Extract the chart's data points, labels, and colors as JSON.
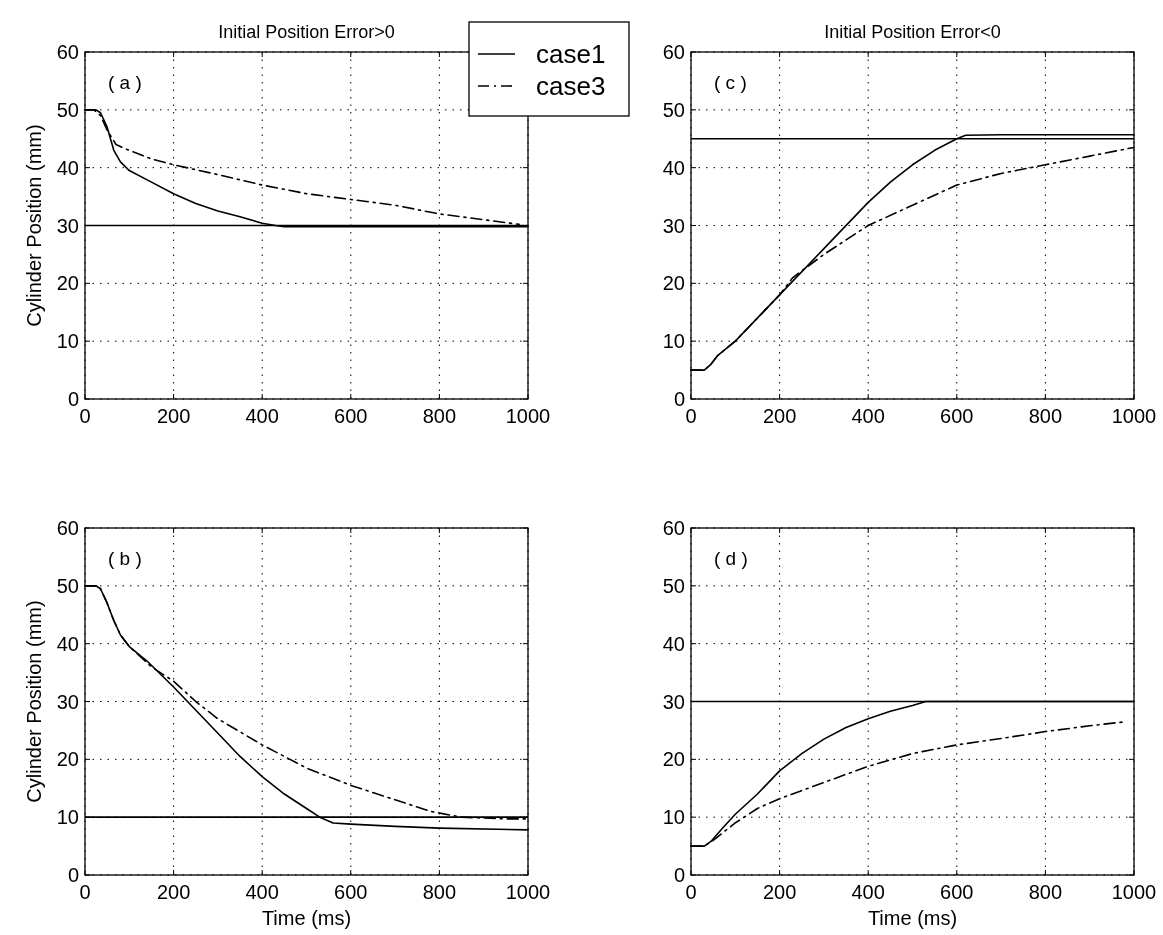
{
  "chart_data": [
    {
      "type": "line",
      "title": "Initial Position Error>0",
      "ylabel": "Cylinder Position (mm)",
      "annotations": [
        "( a )"
      ],
      "xlim": [
        0,
        1000
      ],
      "xticks": [
        0,
        200,
        400,
        600,
        800,
        1000
      ],
      "ylim": [
        0,
        60
      ],
      "yticks": [
        0,
        10,
        20,
        30,
        40,
        50,
        60
      ],
      "grid": true,
      "legend": "top right",
      "ref_lines": [
        {
          "axis": "y",
          "value": 30,
          "color": "#000000"
        }
      ],
      "series": [
        {
          "name": "case1",
          "color": "#000000",
          "line_style": "solid",
          "x": [
            0,
            25,
            35,
            50,
            65,
            80,
            100,
            150,
            200,
            250,
            300,
            350,
            400,
            430,
            450,
            600,
            800,
            1000
          ],
          "values": [
            50,
            50,
            49.5,
            47,
            43,
            41,
            39.5,
            37.5,
            35.5,
            33.8,
            32.5,
            31.5,
            30.4,
            30,
            29.8,
            29.8,
            29.8,
            29.8
          ]
        },
        {
          "name": "case3",
          "color": "#000000",
          "line_style": "dashed",
          "x": [
            0,
            20,
            35,
            50,
            70,
            90,
            150,
            200,
            300,
            400,
            500,
            600,
            700,
            800,
            900,
            980
          ],
          "values": [
            50,
            50,
            49,
            46.5,
            44,
            43.3,
            41.5,
            40.5,
            38.8,
            37,
            35.5,
            34.5,
            33.5,
            32,
            31,
            30.2
          ]
        }
      ]
    },
    {
      "type": "line",
      "title": "Initial Position Error<0",
      "annotations": [
        "( c )"
      ],
      "xlim": [
        0,
        1000
      ],
      "xticks": [
        0,
        200,
        400,
        600,
        800,
        1000
      ],
      "ylim": [
        0,
        60
      ],
      "yticks": [
        0,
        10,
        20,
        30,
        40,
        50,
        60
      ],
      "grid": true,
      "ref_lines": [
        {
          "axis": "y",
          "value": 45,
          "color": "#000000"
        }
      ],
      "series": [
        {
          "color": "#000000",
          "line_style": "solid",
          "x": [
            0,
            30,
            45,
            60,
            100,
            200,
            300,
            400,
            450,
            500,
            550,
            600,
            620,
            700,
            1000
          ],
          "values": [
            5,
            5,
            6,
            7.5,
            10,
            18,
            26,
            34,
            37.5,
            40.5,
            43,
            45,
            45.6,
            45.7,
            45.7
          ]
        },
        {
          "color": "#000000",
          "line_style": "dashed",
          "x": [
            0,
            30,
            45,
            60,
            100,
            200,
            230,
            300,
            400,
            500,
            600,
            700,
            800,
            900,
            1000
          ],
          "values": [
            5,
            5,
            6,
            7.5,
            10,
            18,
            21,
            25,
            30,
            33.5,
            37,
            39,
            40.5,
            42,
            43.5
          ]
        }
      ]
    },
    {
      "type": "line",
      "xlabel": "Time (ms)",
      "ylabel": "Cylinder Position (mm)",
      "annotations": [
        "( b )"
      ],
      "xlim": [
        0,
        1000
      ],
      "xticks": [
        0,
        200,
        400,
        600,
        800,
        1000
      ],
      "ylim": [
        0,
        60
      ],
      "yticks": [
        0,
        10,
        20,
        30,
        40,
        50,
        60
      ],
      "grid": true,
      "ref_lines": [
        {
          "axis": "y",
          "value": 10,
          "color": "#000000"
        }
      ],
      "series": [
        {
          "color": "#000000",
          "line_style": "solid",
          "x": [
            0,
            25,
            35,
            50,
            65,
            80,
            100,
            140,
            200,
            300,
            350,
            400,
            450,
            500,
            530,
            560,
            600,
            700,
            800,
            1000
          ],
          "values": [
            50,
            50,
            49.5,
            47,
            44,
            41.5,
            39.5,
            37,
            32.5,
            24.5,
            20.5,
            17,
            14,
            11.5,
            10,
            9,
            8.8,
            8.4,
            8.1,
            7.8
          ]
        },
        {
          "color": "#000000",
          "line_style": "dashed",
          "x": [
            0,
            25,
            35,
            50,
            65,
            80,
            100,
            150,
            200,
            250,
            300,
            400,
            500,
            600,
            700,
            780,
            850,
            950,
            1000
          ],
          "values": [
            50,
            50,
            49.5,
            47,
            44,
            41.5,
            39.5,
            36,
            33.5,
            30,
            27,
            22.5,
            18.5,
            15.5,
            13,
            11,
            10,
            9.7,
            9.7
          ]
        }
      ]
    },
    {
      "type": "line",
      "xlabel": "Time (ms)",
      "annotations": [
        "( d )"
      ],
      "xlim": [
        0,
        1000
      ],
      "xticks": [
        0,
        200,
        400,
        600,
        800,
        1000
      ],
      "ylim": [
        0,
        60
      ],
      "yticks": [
        0,
        10,
        20,
        30,
        40,
        50,
        60
      ],
      "grid": true,
      "ref_lines": [
        {
          "axis": "y",
          "value": 30,
          "color": "#000000"
        }
      ],
      "series": [
        {
          "color": "#000000",
          "line_style": "solid",
          "x": [
            0,
            30,
            45,
            70,
            100,
            150,
            200,
            250,
            300,
            350,
            400,
            450,
            500,
            530,
            1000
          ],
          "values": [
            5,
            5,
            5.8,
            8,
            10.5,
            14,
            18,
            21,
            23.5,
            25.5,
            27,
            28.3,
            29.3,
            30,
            30
          ]
        },
        {
          "color": "#000000",
          "line_style": "dashed",
          "x": [
            0,
            30,
            50,
            100,
            150,
            200,
            300,
            400,
            500,
            600,
            700,
            800,
            900,
            980
          ],
          "values": [
            5,
            5,
            6,
            9,
            11.5,
            13.2,
            16,
            18.8,
            21,
            22.5,
            23.6,
            24.8,
            25.8,
            26.5
          ]
        }
      ]
    }
  ]
}
